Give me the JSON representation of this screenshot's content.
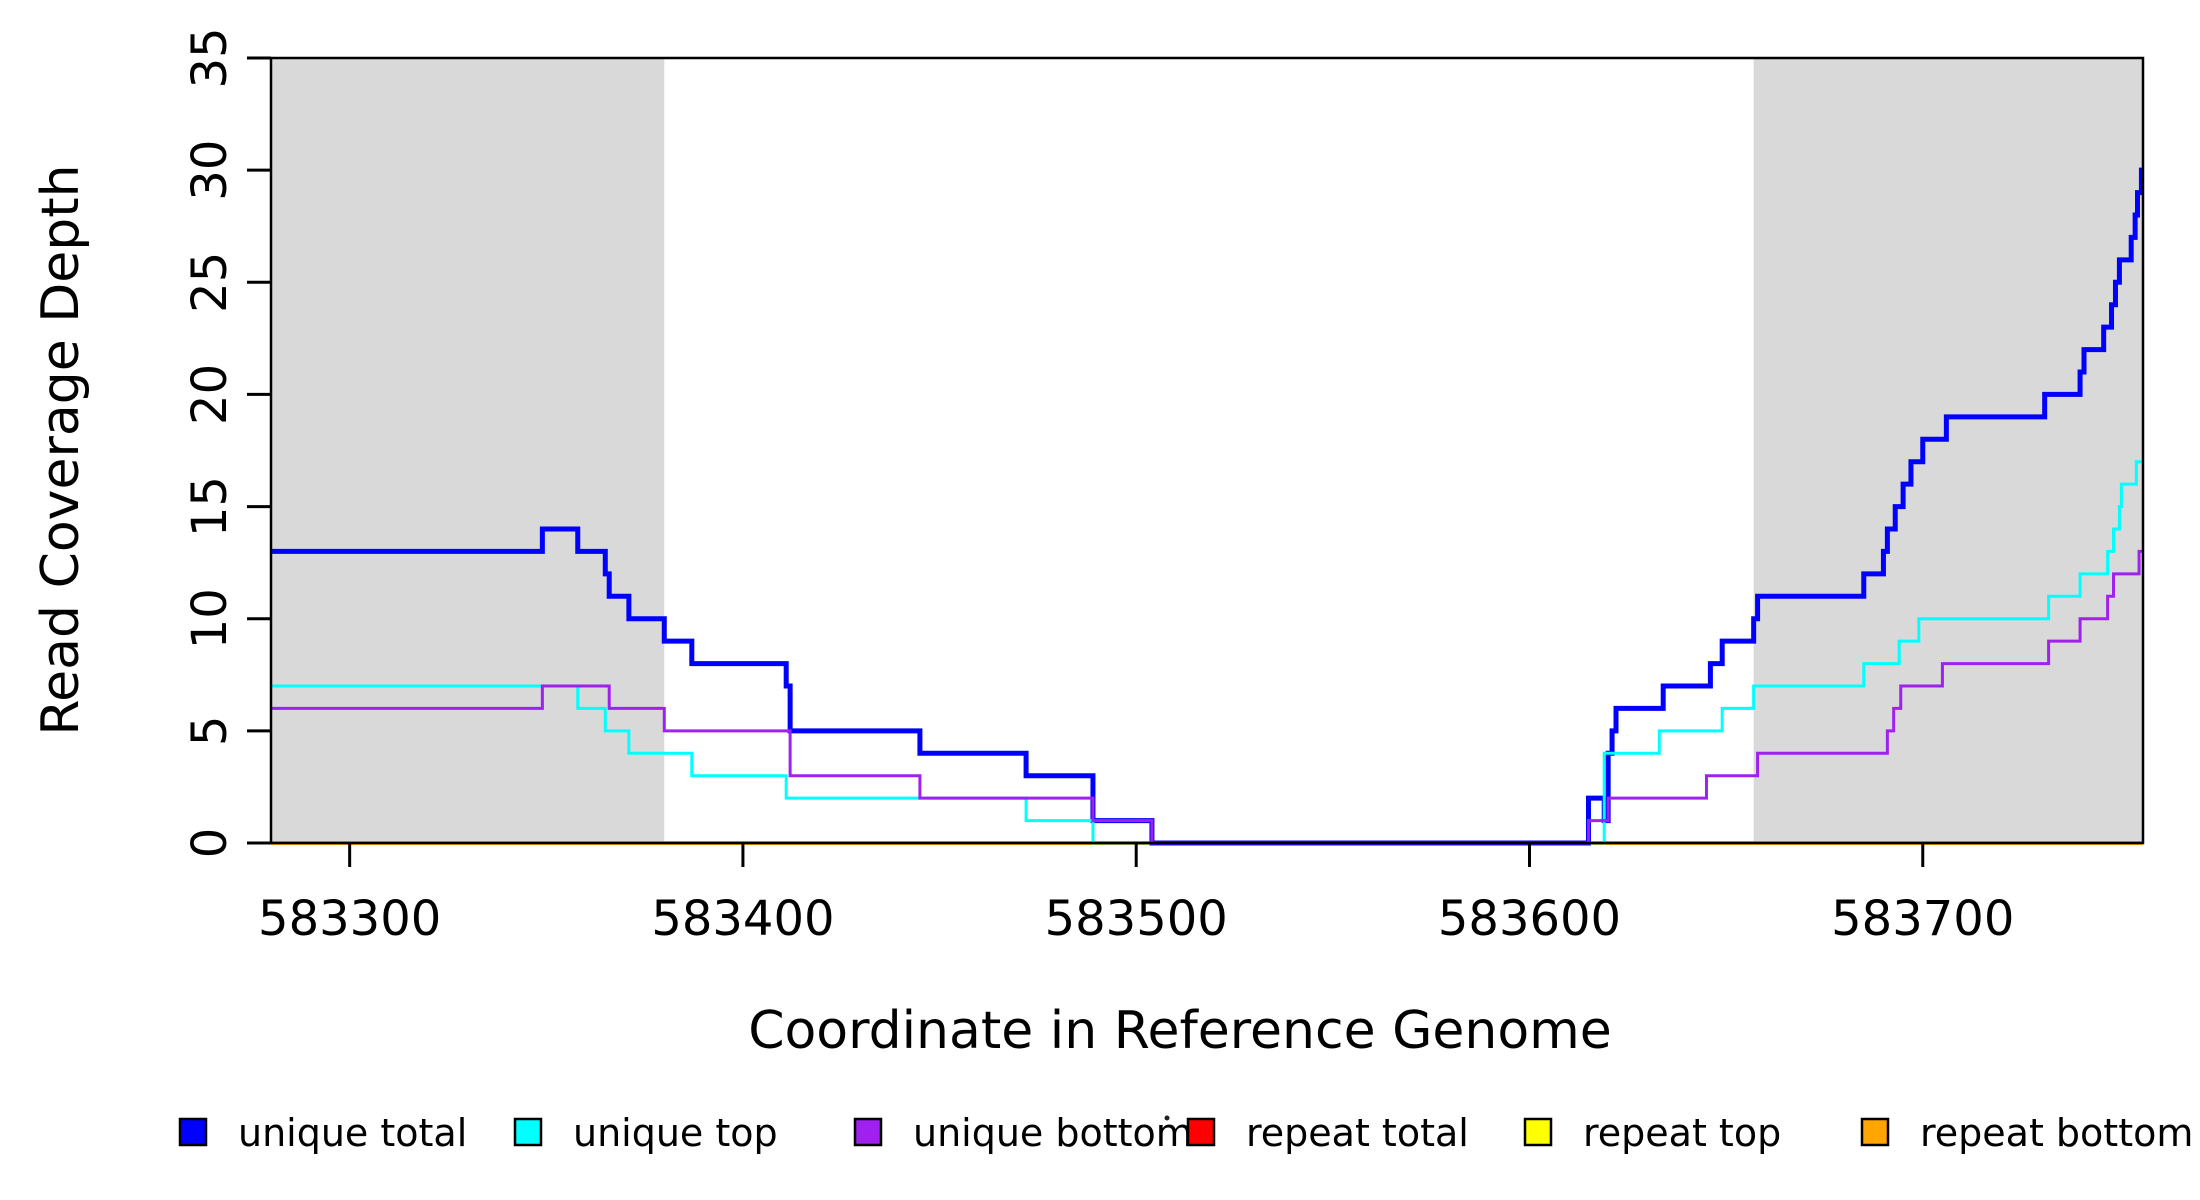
{
  "chart_data": {
    "type": "line",
    "subtype": "step-coverage",
    "title": "",
    "xlabel": "Coordinate in Reference Genome",
    "ylabel": "Read Coverage Depth",
    "xlim": [
      583280,
      583756
    ],
    "ylim": [
      0,
      35
    ],
    "x_ticks": [
      583300,
      583400,
      583500,
      583600,
      583700
    ],
    "y_ticks": [
      0,
      5,
      10,
      15,
      20,
      25,
      30,
      35
    ],
    "grid": false,
    "shaded_regions": [
      {
        "from": 583280,
        "to": 583380,
        "color": "#d9d9d9"
      },
      {
        "from": 583657,
        "to": 583756,
        "color": "#d9d9d9"
      }
    ],
    "legend_position": "bottom",
    "draw_order": [
      "repeat total",
      "repeat top",
      "repeat bottom",
      "unique total",
      "unique top",
      "unique bottom"
    ],
    "series": [
      {
        "name": "unique total",
        "color": "#0000ff",
        "line_width": 5,
        "steps": [
          [
            583280,
            13
          ],
          [
            583349,
            14
          ],
          [
            583358,
            13
          ],
          [
            583365,
            12
          ],
          [
            583366,
            11
          ],
          [
            583371,
            10
          ],
          [
            583380,
            9
          ],
          [
            583387,
            8
          ],
          [
            583411,
            7
          ],
          [
            583412,
            5
          ],
          [
            583445,
            4
          ],
          [
            583472,
            3
          ],
          [
            583489,
            1
          ],
          [
            583504,
            0
          ],
          [
            583615,
            2
          ],
          [
            583619,
            1
          ],
          [
            583620,
            4
          ],
          [
            583621,
            5
          ],
          [
            583622,
            6
          ],
          [
            583634,
            7
          ],
          [
            583646,
            8
          ],
          [
            583649,
            9
          ],
          [
            583657,
            10
          ],
          [
            583658,
            11
          ],
          [
            583685,
            12
          ],
          [
            583690,
            13
          ],
          [
            583691,
            14
          ],
          [
            583693,
            15
          ],
          [
            583695,
            16
          ],
          [
            583697,
            17
          ],
          [
            583700,
            18
          ],
          [
            583706,
            19
          ],
          [
            583731,
            20
          ],
          [
            583740,
            21
          ],
          [
            583741,
            22
          ],
          [
            583746,
            23
          ],
          [
            583748,
            24
          ],
          [
            583749,
            25
          ],
          [
            583750,
            26
          ],
          [
            583753,
            27
          ],
          [
            583754,
            28
          ],
          [
            583754.6,
            29
          ],
          [
            583755.6,
            30
          ]
        ]
      },
      {
        "name": "unique top",
        "color": "#00ffff",
        "line_width": 3,
        "steps": [
          [
            583280,
            7
          ],
          [
            583358,
            6
          ],
          [
            583365,
            5
          ],
          [
            583371,
            4
          ],
          [
            583387,
            3
          ],
          [
            583411,
            2
          ],
          [
            583472,
            1
          ],
          [
            583489,
            0
          ],
          [
            583619,
            4
          ],
          [
            583633,
            5
          ],
          [
            583649,
            6
          ],
          [
            583657,
            7
          ],
          [
            583685,
            8
          ],
          [
            583694,
            9
          ],
          [
            583699,
            10
          ],
          [
            583732,
            11
          ],
          [
            583740,
            12
          ],
          [
            583747,
            13
          ],
          [
            583748.5,
            14
          ],
          [
            583750,
            15
          ],
          [
            583750.5,
            16
          ],
          [
            583754.3,
            17
          ]
        ]
      },
      {
        "name": "unique bottom",
        "color": "#a020f0",
        "line_width": 3,
        "steps": [
          [
            583280,
            6
          ],
          [
            583349,
            7
          ],
          [
            583366,
            6
          ],
          [
            583380,
            5
          ],
          [
            583412,
            3
          ],
          [
            583445,
            2
          ],
          [
            583489,
            1
          ],
          [
            583504,
            0
          ],
          [
            583615,
            1
          ],
          [
            583620,
            2
          ],
          [
            583645,
            3
          ],
          [
            583658,
            4
          ],
          [
            583691,
            5
          ],
          [
            583692.6,
            6
          ],
          [
            583694.4,
            7
          ],
          [
            583705,
            8
          ],
          [
            583732,
            9
          ],
          [
            583740,
            10
          ],
          [
            583747,
            11
          ],
          [
            583748.5,
            12
          ],
          [
            583755,
            13
          ]
        ]
      },
      {
        "name": "repeat total",
        "color": "#ff0000",
        "line_width": 3,
        "steps": [
          [
            583280,
            0
          ]
        ]
      },
      {
        "name": "repeat top",
        "color": "#ffff00",
        "line_width": 3,
        "steps": [
          [
            583280,
            0
          ]
        ]
      },
      {
        "name": "repeat bottom",
        "color": "#ffa500",
        "line_width": 4,
        "steps": [
          [
            583280,
            0
          ]
        ]
      }
    ],
    "legend": [
      {
        "label": "unique total",
        "color": "#0000ff"
      },
      {
        "label": "unique top",
        "color": "#00ffff"
      },
      {
        "label": "unique bottom",
        "color": "#a020f0"
      },
      {
        "label": "repeat total",
        "color": "#ff0000"
      },
      {
        "label": "repeat top",
        "color": "#ffff00"
      },
      {
        "label": "repeat bottom",
        "color": "#ffa500"
      }
    ],
    "legend_artifact_dot": {
      "present": true
    }
  }
}
